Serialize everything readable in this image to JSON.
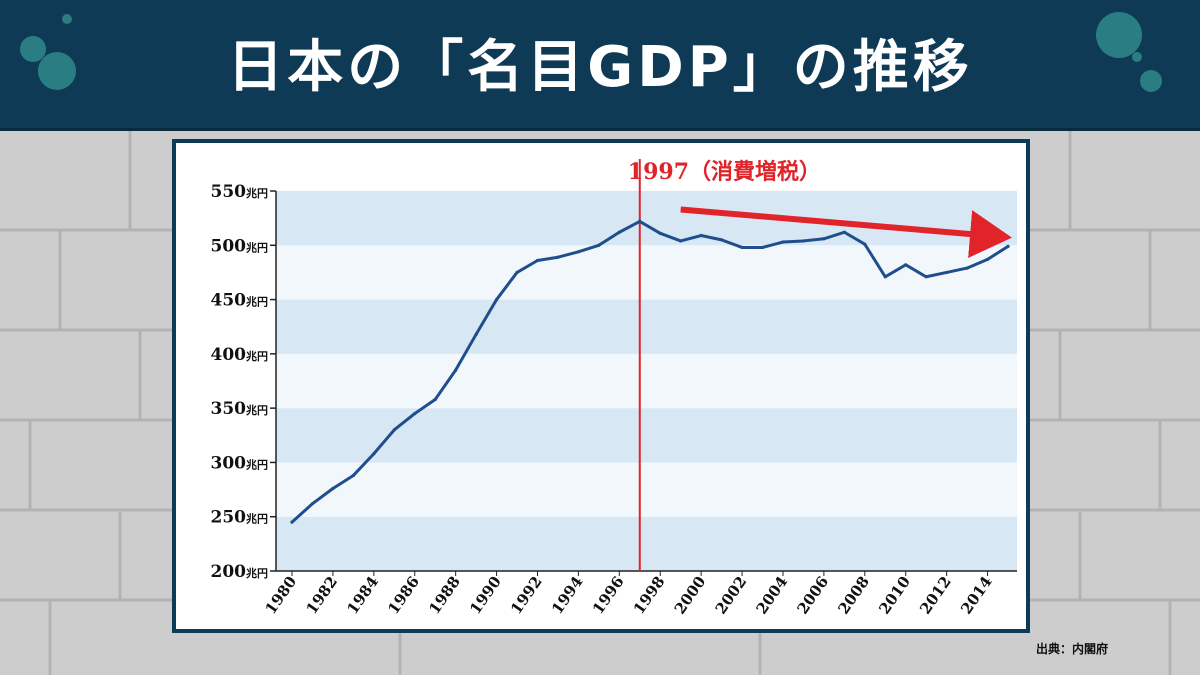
{
  "header": {
    "title": "日本の「名目GDP」の推移"
  },
  "source_note": "出典：内閣府",
  "colors": {
    "header_bg": "#0f3a55",
    "line": "#1f4e8c",
    "marker": "#e0242a",
    "band_dark": "#d7e7f4",
    "band_light": "#f2f7fc"
  },
  "chart_data": {
    "type": "line",
    "title": "",
    "xlabel": "",
    "ylabel": "",
    "ylim": [
      200,
      550
    ],
    "xlim": [
      1980,
      2015
    ],
    "y_ticks": [
      {
        "value": 550,
        "label": "550兆円"
      },
      {
        "value": 500,
        "label": "500兆円"
      },
      {
        "value": 450,
        "label": "450兆円"
      },
      {
        "value": 400,
        "label": "400兆円"
      },
      {
        "value": 350,
        "label": "350兆円"
      },
      {
        "value": 300,
        "label": "300兆円"
      },
      {
        "value": 250,
        "label": "250兆円"
      },
      {
        "value": 200,
        "label": "200兆円"
      }
    ],
    "x_ticks": [
      "1980",
      "1982",
      "1984",
      "1986",
      "1988",
      "1990",
      "1992",
      "1994",
      "1996",
      "1998",
      "2000",
      "2002",
      "2004",
      "2006",
      "2008",
      "2010",
      "2012",
      "2014"
    ],
    "series": [
      {
        "x": [
          1980,
          1981,
          1982,
          1983,
          1984,
          1985,
          1986,
          1987,
          1988,
          1989,
          1990,
          1991,
          1992,
          1993,
          1994,
          1995,
          1996,
          1997,
          1998,
          1999,
          2000,
          2001,
          2002,
          2003,
          2004,
          2005,
          2006,
          2007,
          2008,
          2009,
          2010,
          2011,
          2012,
          2013,
          2014,
          2015
        ],
        "y": [
          245,
          262,
          276,
          288,
          308,
          330,
          345,
          358,
          385,
          418,
          450,
          475,
          486,
          489,
          494,
          500,
          512,
          522,
          511,
          504,
          509,
          505,
          498,
          498,
          503,
          504,
          506,
          512,
          501,
          471,
          482,
          471,
          475,
          479,
          487,
          499
        ]
      }
    ],
    "annotations": [
      {
        "x": 1997,
        "label": "1997（消費増税）",
        "style": "vertical-line"
      },
      {
        "from": [
          1999,
          533
        ],
        "to": [
          2015,
          508
        ],
        "label": "",
        "style": "arrow"
      }
    ],
    "grid": "horizontal-bands",
    "legend": "none"
  }
}
